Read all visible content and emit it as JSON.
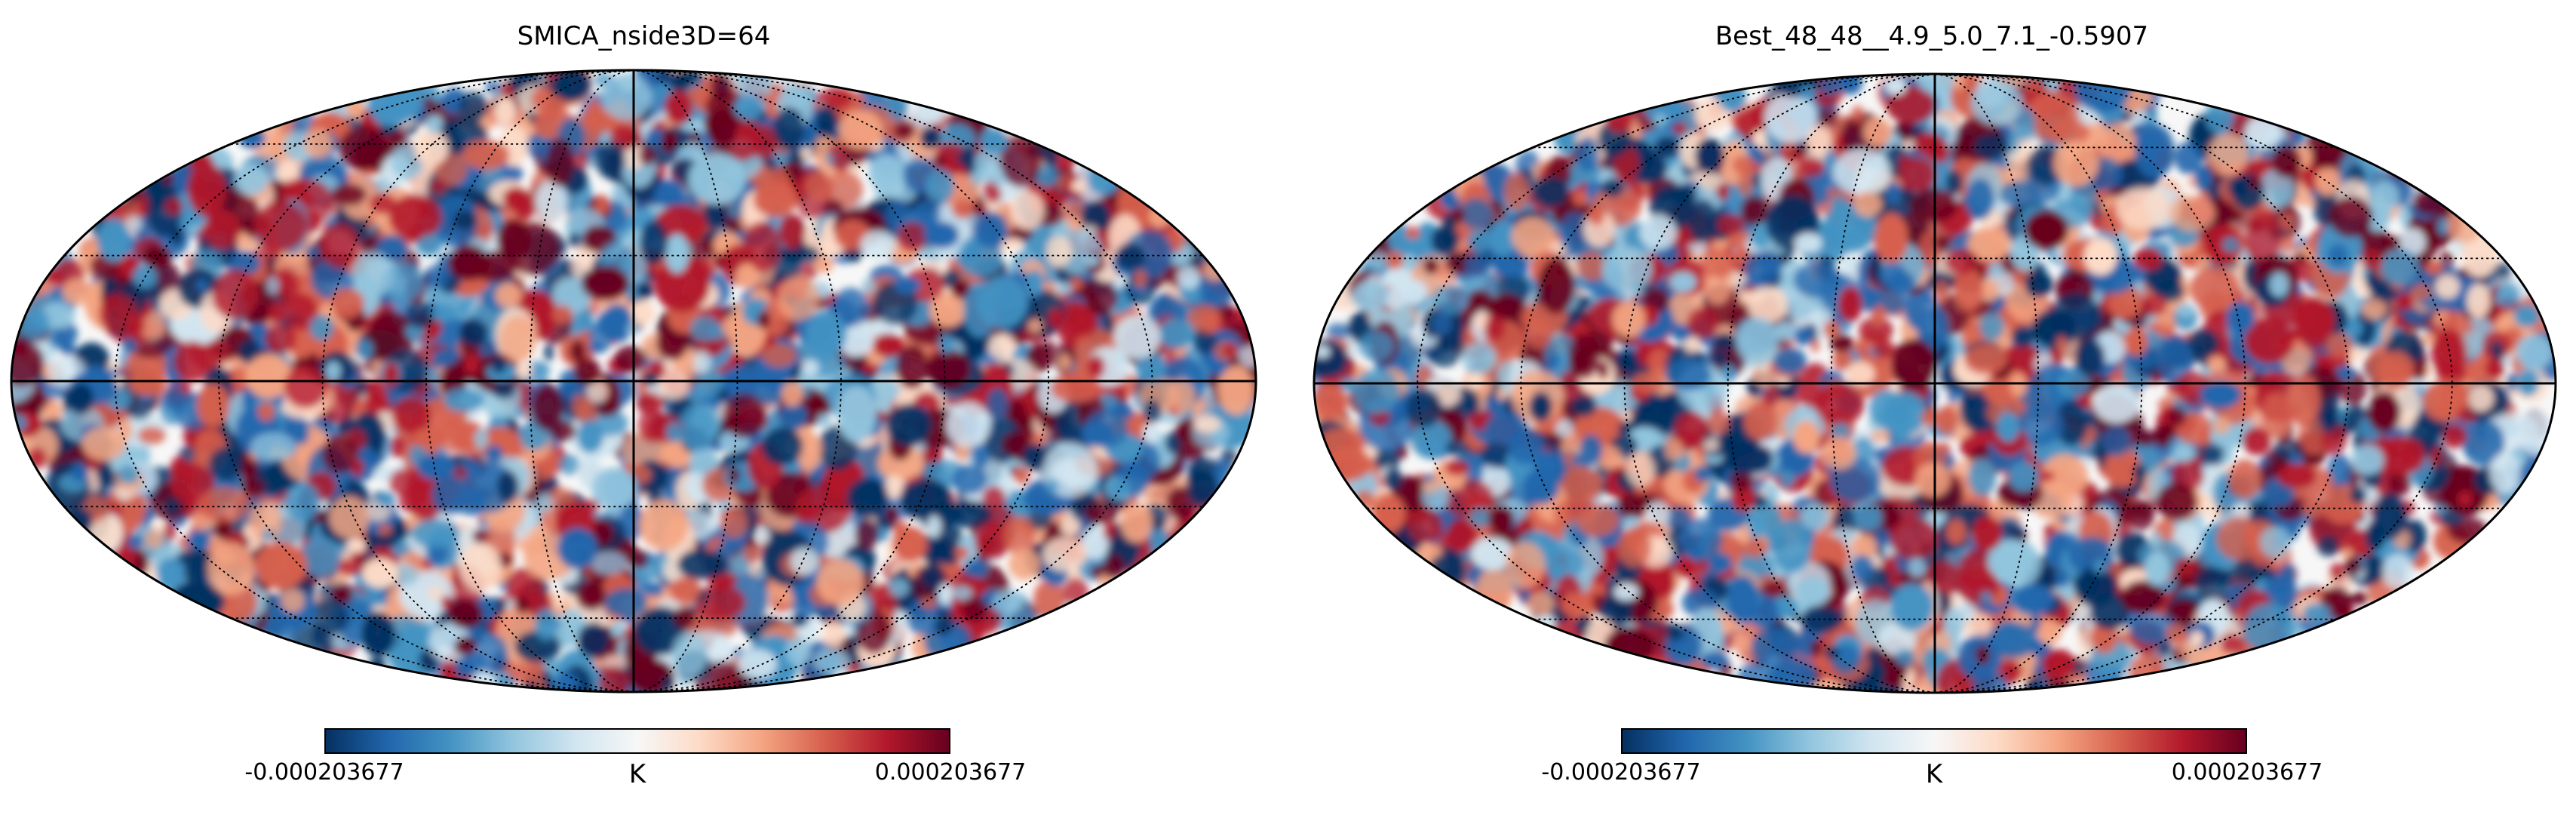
{
  "figure": {
    "colormap": [
      "#053061",
      "#2166ac",
      "#4393c3",
      "#92c5de",
      "#d1e5f0",
      "#f7f7f7",
      "#fddbc7",
      "#f4a582",
      "#d6604d",
      "#b2182b",
      "#67001f"
    ],
    "graticule_color": "#000000",
    "panels": [
      {
        "title": "SMICA_nside3D=64",
        "colorbar": {
          "min_label": "-0.000203677",
          "max_label": "0.000203677",
          "unit": "K"
        }
      },
      {
        "title": "Best_48_48__4.9_5.0_7.1_-0.5907",
        "colorbar": {
          "min_label": "-0.000203677",
          "max_label": "0.000203677",
          "unit": "K"
        }
      }
    ]
  }
}
